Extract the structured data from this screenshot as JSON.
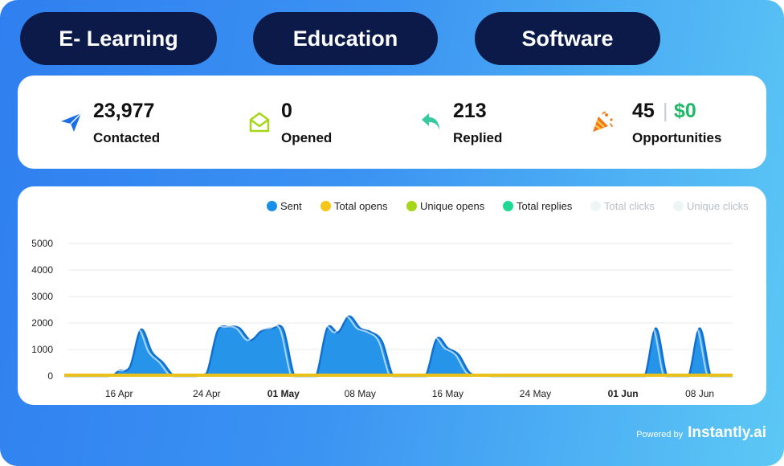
{
  "tags": [
    {
      "label": "E- Learning"
    },
    {
      "label": "Education"
    },
    {
      "label": "Software"
    }
  ],
  "stats": {
    "contacted": {
      "value": "23,977",
      "label": "Contacted",
      "icon": "paper-plane-icon"
    },
    "opened": {
      "value": "0",
      "label": "Opened",
      "icon": "envelope-open-icon"
    },
    "replied": {
      "value": "213",
      "label": "Replied",
      "icon": "reply-arrow-icon"
    },
    "opportunities": {
      "value": "45",
      "separator": "|",
      "money": "$0",
      "label": "Opportunities",
      "icon": "party-popper-icon"
    }
  },
  "legend": [
    {
      "label": "Sent",
      "color": "#1a8fe8"
    },
    {
      "label": "Total opens",
      "color": "#f5c518"
    },
    {
      "label": "Unique opens",
      "color": "#a6d618"
    },
    {
      "label": "Total replies",
      "color": "#1fd896"
    },
    {
      "label": "Total clicks",
      "color": "#eef5f5"
    },
    {
      "label": "Unique clicks",
      "color": "#eef5f5"
    }
  ],
  "chart_data": {
    "type": "area",
    "ylim": [
      0,
      5000
    ],
    "y_ticks": [
      "0",
      "1000",
      "2000",
      "3000",
      "4000",
      "5000"
    ],
    "x_ticks": [
      {
        "label": "16 Apr",
        "day": 7,
        "bold": false
      },
      {
        "label": "24 Apr",
        "day": 15,
        "bold": false
      },
      {
        "label": "01 May",
        "day": 22,
        "bold": true
      },
      {
        "label": "08 May",
        "day": 29,
        "bold": false
      },
      {
        "label": "16 May",
        "day": 37,
        "bold": false
      },
      {
        "label": "24 May",
        "day": 45,
        "bold": false
      },
      {
        "label": "01 Jun",
        "day": 53,
        "bold": true
      },
      {
        "label": "08 Jun",
        "day": 60,
        "bold": false
      }
    ],
    "x_range": [
      2,
      63
    ],
    "series": [
      {
        "name": "Sent",
        "color": "#1a8fe8",
        "x": [
          2,
          6,
          7,
          8,
          9,
          10,
          11,
          12,
          13,
          14,
          15,
          16,
          17,
          18,
          19,
          20,
          21,
          22,
          23,
          24,
          25,
          26,
          27,
          28,
          29,
          30,
          31,
          32,
          33,
          34,
          35,
          36,
          37,
          38,
          39,
          40,
          41,
          42,
          43,
          44,
          45,
          46,
          47,
          48,
          49,
          50,
          51,
          52,
          53,
          54,
          55,
          56,
          57,
          58,
          59,
          60,
          61,
          62,
          63
        ],
        "y": [
          0,
          0,
          200,
          350,
          1750,
          900,
          500,
          0,
          0,
          0,
          100,
          1700,
          1850,
          1800,
          1350,
          1700,
          1800,
          1750,
          0,
          0,
          0,
          1800,
          1650,
          2250,
          1800,
          1650,
          1300,
          0,
          0,
          0,
          0,
          1400,
          1050,
          800,
          120,
          50,
          0,
          0,
          0,
          0,
          0,
          0,
          0,
          0,
          0,
          0,
          0,
          0,
          0,
          0,
          0,
          1800,
          0,
          0,
          0,
          1800,
          0,
          0,
          0
        ]
      },
      {
        "name": "Total opens",
        "color": "#f5c518",
        "x": [
          2,
          63
        ],
        "y": [
          0,
          0
        ]
      },
      {
        "name": "Unique opens",
        "color": "#a6d618",
        "x": [
          2,
          63
        ],
        "y": [
          0,
          0
        ]
      },
      {
        "name": "Total replies",
        "color": "#1fd896",
        "x": [
          2,
          63
        ],
        "y": [
          0,
          0
        ]
      }
    ]
  },
  "footer": {
    "powered_by": "Powered by",
    "brand": "Instantly.ai"
  }
}
